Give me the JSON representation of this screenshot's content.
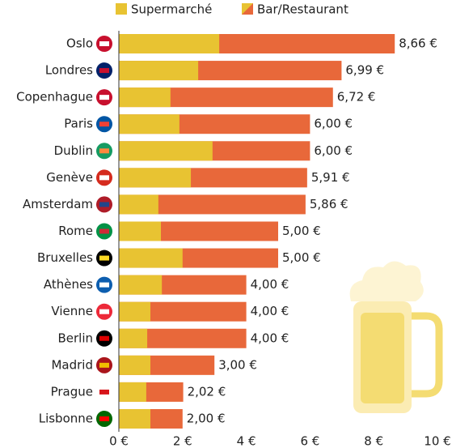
{
  "chart_data": {
    "type": "bar",
    "orientation": "horizontal",
    "overlap": true,
    "categories": [
      "Oslo",
      "Londres",
      "Copenhague",
      "Paris",
      "Dublin",
      "Genève",
      "Amsterdam",
      "Rome",
      "Bruxelles",
      "Athènes",
      "Vienne",
      "Berlin",
      "Madrid",
      "Prague",
      "Lisbonne"
    ],
    "series": [
      {
        "name": "Bar/Restaurant",
        "color": "#e8683a",
        "values": [
          8.66,
          6.99,
          6.72,
          6.0,
          6.0,
          5.91,
          5.86,
          5.0,
          5.0,
          4.0,
          4.0,
          4.0,
          3.0,
          2.02,
          2.0
        ],
        "value_labels": [
          "8,66 €",
          "6,99 €",
          "6,72 €",
          "6,00 €",
          "6,00 €",
          "5,91 €",
          "5,86 €",
          "5,00 €",
          "5,00 €",
          "4,00 €",
          "4,00 €",
          "4,00 €",
          "3,00 €",
          "2,02 €",
          "2,00 €"
        ]
      },
      {
        "name": "Supermarché",
        "color": "#e8c332",
        "values": [
          3.15,
          2.49,
          1.62,
          1.9,
          2.94,
          2.26,
          1.24,
          1.32,
          2.0,
          1.35,
          0.99,
          0.89,
          0.99,
          0.86,
          0.99
        ]
      }
    ],
    "xlim": [
      0,
      10
    ],
    "xticks": [
      {
        "value": 0,
        "label": "0 €"
      },
      {
        "value": 2,
        "label": "2 €"
      },
      {
        "value": 4,
        "label": "4 €"
      },
      {
        "value": 6,
        "label": "6 €"
      },
      {
        "value": 8,
        "label": "8 €"
      },
      {
        "value": 10,
        "label": "10 €"
      }
    ]
  }
}
